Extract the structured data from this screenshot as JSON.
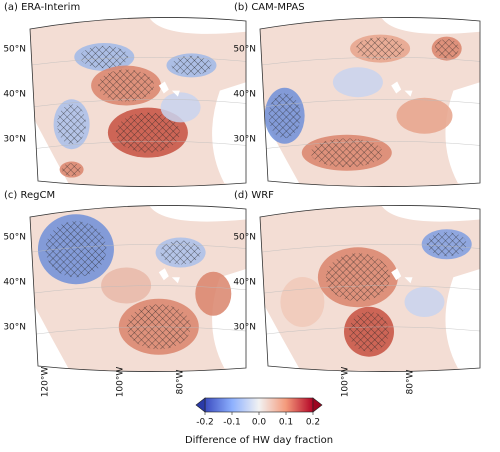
{
  "panels": [
    {
      "title": "(a) ERA-Interim",
      "lat_labels": [
        "50°N",
        "40°N",
        "30°N"
      ]
    },
    {
      "title": "(b) CAM-MPAS",
      "lat_labels": [
        "50°N",
        "40°N",
        "30°N"
      ]
    },
    {
      "title": "(c) RegCM",
      "lat_labels": [
        "50°N",
        "40°N",
        "30°N"
      ]
    },
    {
      "title": "(d) WRF",
      "lat_labels": [
        "50°N",
        "40°N",
        "30°N"
      ]
    }
  ],
  "lon_labels": {
    "left": [
      "120°W",
      "100°W",
      "80°W"
    ],
    "right": [
      "100°W",
      "80°W"
    ]
  },
  "colorbar": {
    "ticks": [
      -0.2,
      -0.1,
      {
        "value": 0,
        "label": "0.0"
      },
      0.1,
      0.2
    ],
    "label": "Difference of HW day fraction"
  }
}
